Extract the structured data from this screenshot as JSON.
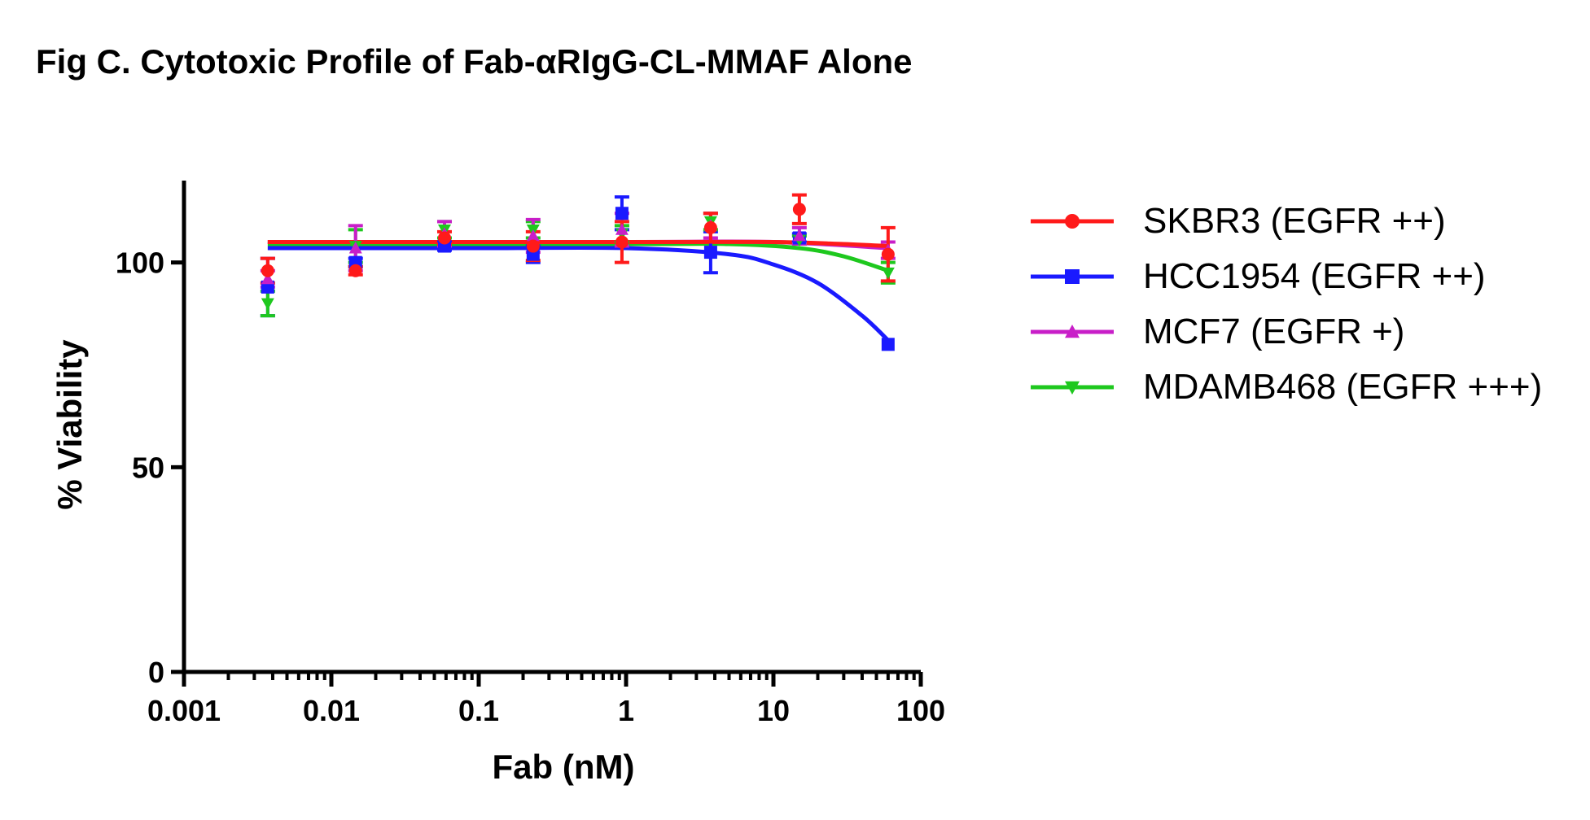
{
  "title": "Fig C. Cytotoxic Profile of Fab-αRIgG-CL-MMAF Alone",
  "chart_data": {
    "type": "scatter",
    "title": "Fig C. Cytotoxic Profile of Fab-αRIgG-CL-MMAF Alone",
    "xlabel": "Fab (nM)",
    "ylabel": "% Viability",
    "xscale": "log",
    "xlim": [
      0.001,
      100
    ],
    "ylim": [
      0,
      120
    ],
    "xticks": [
      0.001,
      0.01,
      0.1,
      1,
      10,
      100
    ],
    "xtick_labels": [
      "0.001",
      "0.01",
      "0.1",
      "1",
      "10",
      "100"
    ],
    "yticks": [
      0,
      50,
      100
    ],
    "ytick_labels": [
      "0",
      "50",
      "100"
    ],
    "grid": false,
    "legend_position": "right",
    "series": [
      {
        "name": "SKBR3 (EGFR ++)",
        "color": "#ff1a1a",
        "marker": "circle",
        "x": [
          0.0037,
          0.0146,
          0.0586,
          0.234,
          0.9375,
          3.75,
          15,
          60
        ],
        "y": [
          98,
          98,
          106,
          104,
          105,
          108.5,
          113,
          102
        ],
        "err": [
          3,
          1,
          1.5,
          3.5,
          5,
          3.5,
          3.5,
          6.5
        ],
        "fit": [
          [
            0.0037,
            105
          ],
          [
            1,
            105
          ],
          [
            10,
            105
          ],
          [
            30,
            104.5
          ],
          [
            60,
            104
          ]
        ]
      },
      {
        "name": "HCC1954 (EGFR ++)",
        "color": "#1a1aff",
        "marker": "square",
        "x": [
          0.0037,
          0.0146,
          0.0586,
          0.234,
          0.9375,
          3.75,
          15,
          60
        ],
        "y": [
          94,
          100,
          104,
          102,
          112,
          102.5,
          106,
          80
        ],
        "err": [
          7,
          1,
          1,
          2,
          4,
          5,
          1,
          0
        ],
        "fit": [
          [
            0.0037,
            103.5
          ],
          [
            0.1,
            103.5
          ],
          [
            1,
            103.5
          ],
          [
            5,
            102
          ],
          [
            10,
            99.5
          ],
          [
            20,
            95
          ],
          [
            40,
            87
          ],
          [
            60,
            81
          ]
        ]
      },
      {
        "name": "MCF7 (EGFR +)",
        "color": "#c81ec8",
        "marker": "triangle-up",
        "x": [
          0.0037,
          0.0146,
          0.0586,
          0.234,
          0.9375,
          3.75,
          15,
          60
        ],
        "y": [
          96,
          103.5,
          107,
          106.5,
          108,
          109,
          106.5,
          103
        ],
        "err": [
          2,
          5.5,
          3,
          4,
          4,
          3,
          2,
          2
        ],
        "fit": [
          [
            0.0037,
            105
          ],
          [
            1,
            105
          ],
          [
            10,
            105
          ],
          [
            60,
            103.5
          ]
        ]
      },
      {
        "name": "MDAMB468 (EGFR +++)",
        "color": "#1ec81e",
        "marker": "triangle-down",
        "x": [
          0.0037,
          0.0146,
          0.0586,
          0.234,
          0.9375,
          3.75,
          15,
          60
        ],
        "y": [
          90,
          104,
          108,
          108,
          107,
          110,
          105.5,
          97.5
        ],
        "err": [
          3,
          4,
          2,
          2,
          2,
          2,
          1,
          2.5
        ],
        "fit": [
          [
            0.0037,
            104.5
          ],
          [
            1,
            104.5
          ],
          [
            5,
            104.5
          ],
          [
            15,
            103.5
          ],
          [
            30,
            101.5
          ],
          [
            60,
            98
          ]
        ]
      }
    ]
  }
}
